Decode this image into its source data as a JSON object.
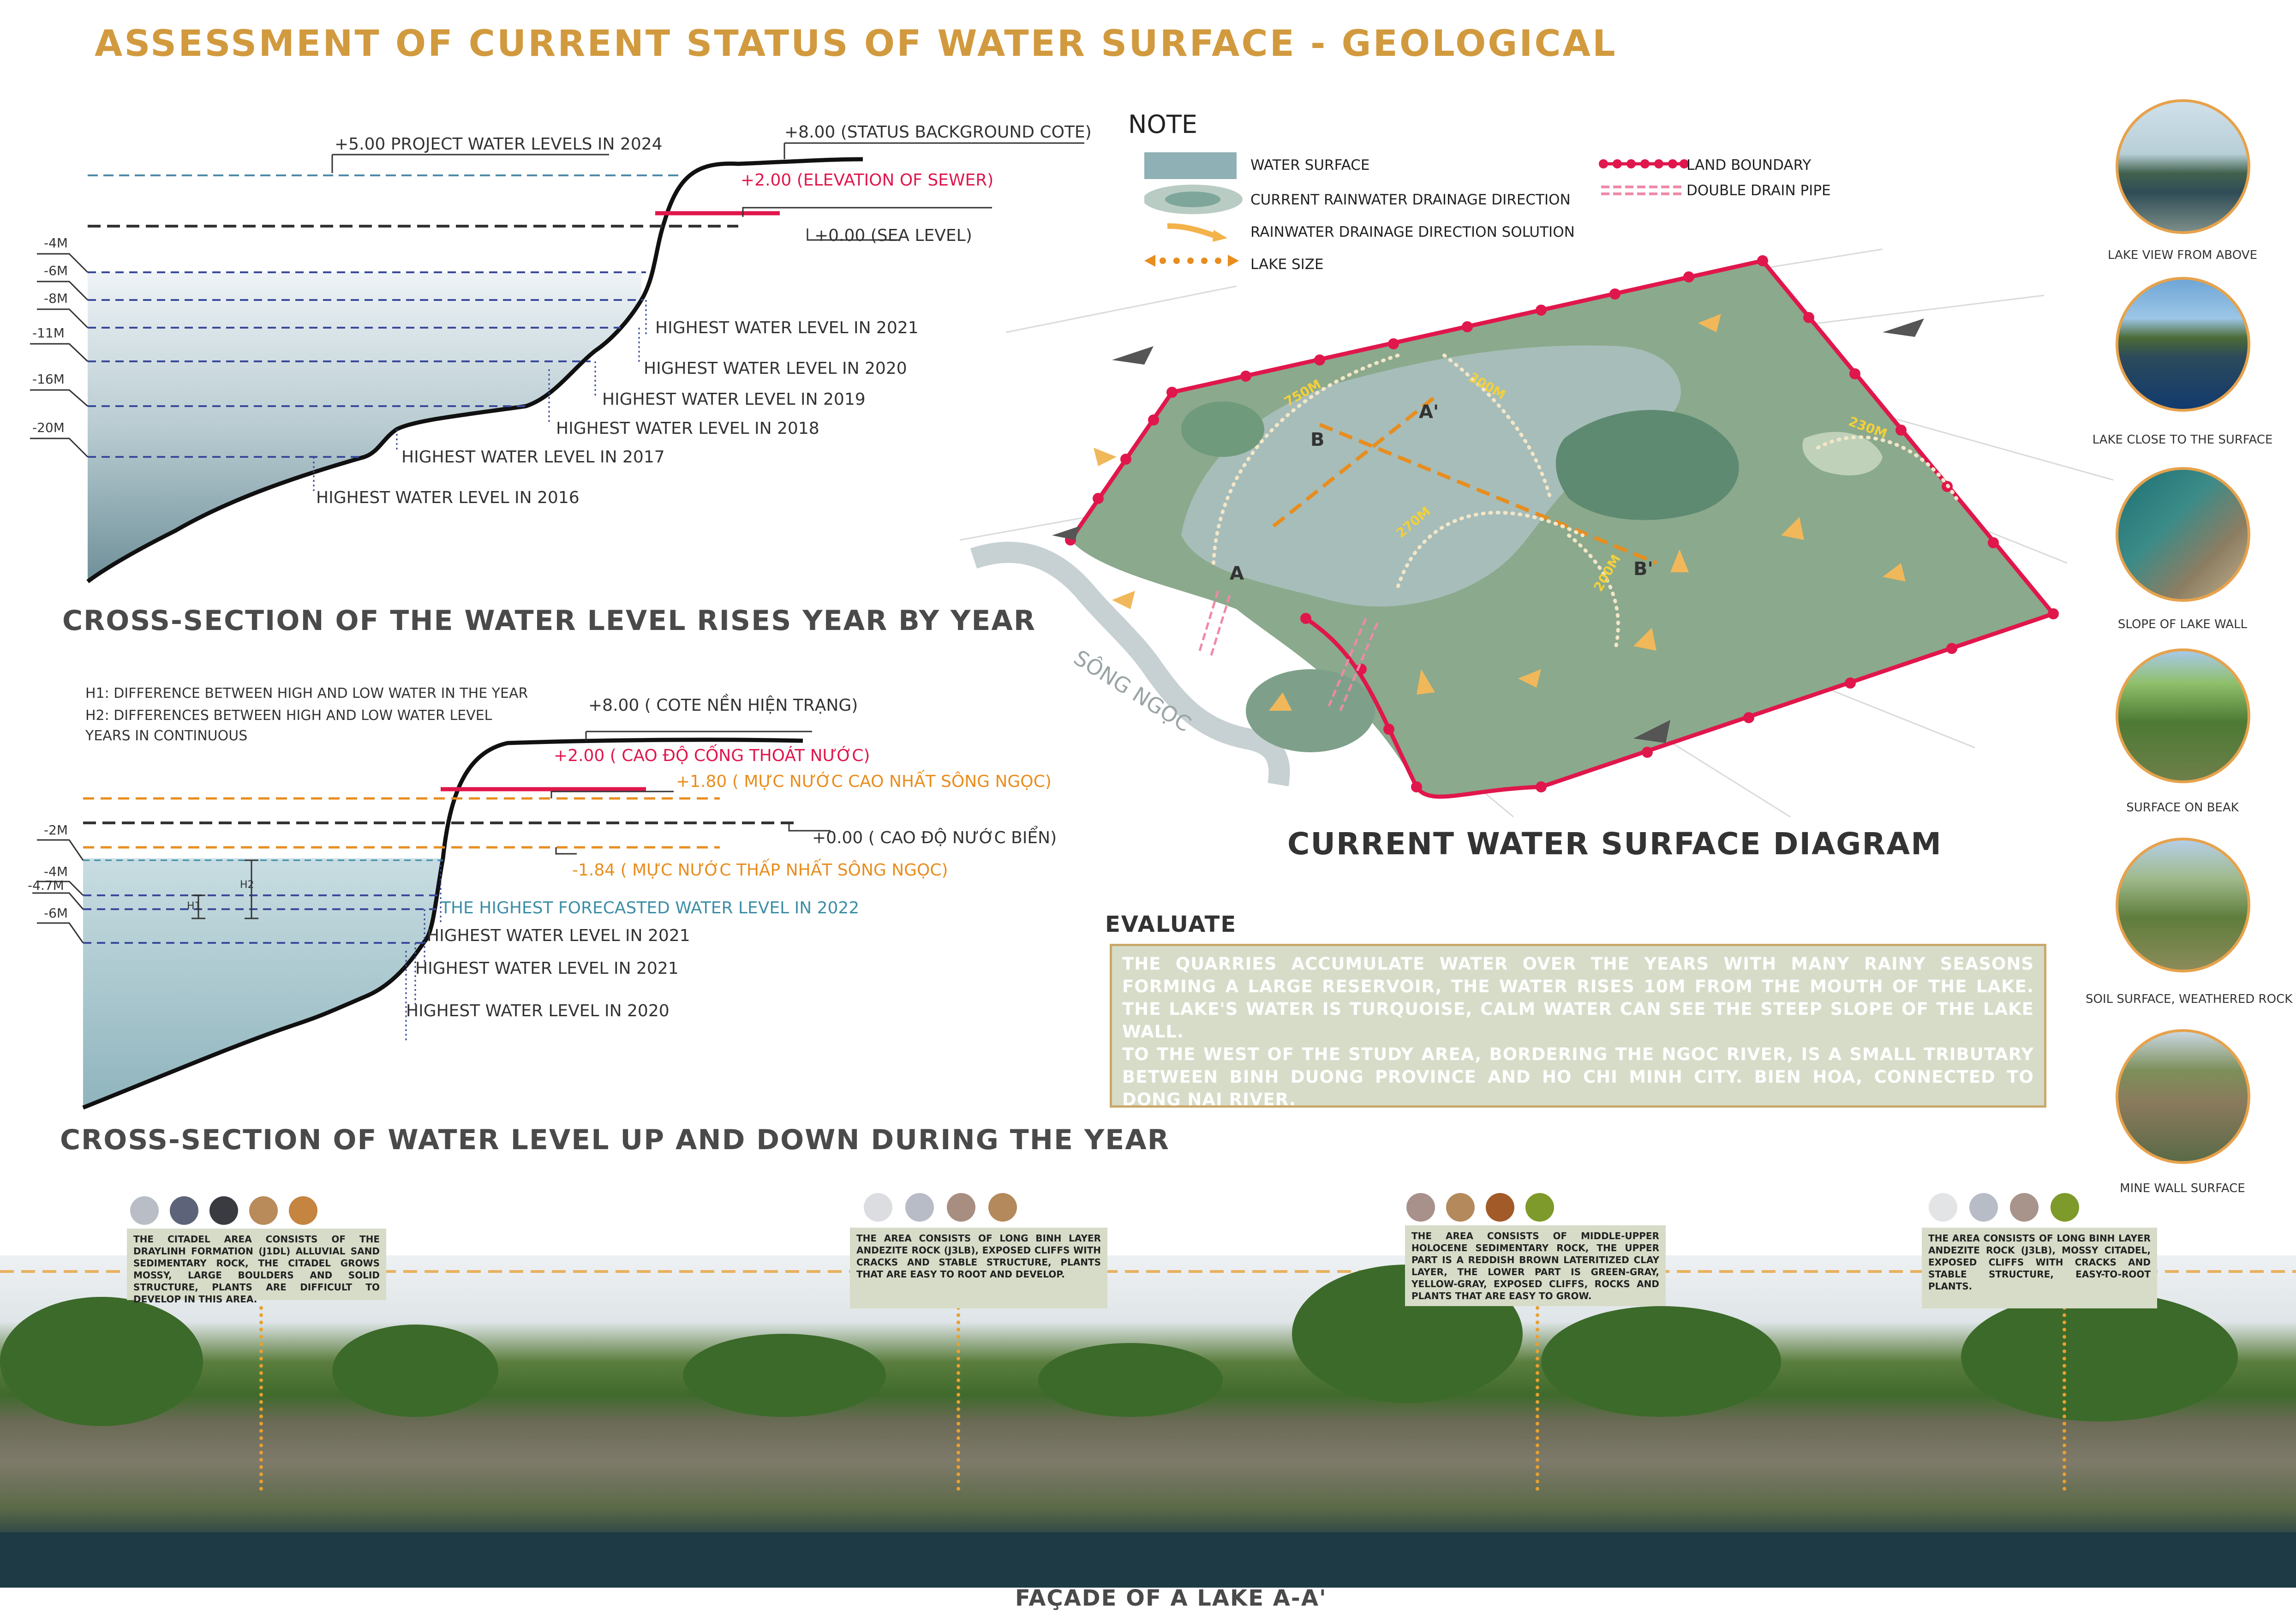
{
  "title": "ASSESSMENT OF CURRENT STATUS OF WATER SURFACE - GEOLOGICAL",
  "section1": {
    "heading": "CROSS-SECTION OF THE WATER LEVEL RISES YEAR BY YEAR",
    "labels": {
      "project_water": "+5.00 PROJECT WATER LEVELS IN 2024",
      "background": "+8.00 (STATUS BACKGROUND COTE)",
      "sewer": "+2.00 (ELEVATION OF SEWER)",
      "sea": "+0.00 (SEA LEVEL)",
      "y2021": "HIGHEST WATER LEVEL IN 2021",
      "y2020": "HIGHEST WATER LEVEL IN 2020",
      "y2019": "HIGHEST WATER LEVEL IN 2019",
      "y2018": "HIGHEST WATER LEVEL IN 2018",
      "y2017": "HIGHEST WATER LEVEL IN 2017",
      "y2016": "HIGHEST WATER LEVEL IN 2016"
    },
    "depths": [
      "-4M",
      "-6M",
      "-8M",
      "-11M",
      "-16M",
      "-20M"
    ]
  },
  "section2": {
    "heading": "CROSS-SECTION OF WATER LEVEL UP AND DOWN DURING THE YEAR",
    "h1": "H1:  DIFFERENCE BETWEEN HIGH AND LOW WATER IN THE YEAR",
    "h2a": "H2: DIFFERENCES BETWEEN HIGH AND LOW WATER LEVEL",
    "h2b": "YEARS IN CONTINUOUS",
    "labels": {
      "background": "+8.00 ( COTE NỀN HIỆN  TRẠNG)",
      "sewer": "+2.00 ( CAO ĐỘ CỐNG THOÁT NƯỚC)",
      "river_high": "+1.80 ( MỰC NƯỚC CAO NHẤT SÔNG NGỌC)",
      "sea": "+0.00 ( CAO ĐỘ NƯỚC BIỂN)",
      "river_low": "-1.84 ( MỰC NƯỚC THẤP NHẤT SÔNG NGỌC)",
      "forecast": "THE HIGHEST FORECASTED WATER LEVEL IN 2022",
      "y2021a": "HIGHEST WATER LEVEL IN 2021",
      "y2021b": "HIGHEST WATER LEVEL IN 2021",
      "y2020": "HIGHEST WATER LEVEL IN 2020",
      "h1_tag": "H1",
      "h2_tag": "H2"
    },
    "depths": [
      "-2M",
      "-4M",
      "-4.7M",
      "-6M"
    ]
  },
  "note": {
    "title": "NOTE",
    "items": [
      "WATER SURFACE",
      "CURRENT RAINWATER DRAINAGE DIRECTION",
      "RAINWATER DRAINAGE DIRECTION SOLUTION",
      "LAKE SIZE",
      "LAND BOUNDARY",
      "DOUBLE DRAIN PIPE"
    ]
  },
  "diagram": {
    "heading": "CURRENT WATER SURFACE DIAGRAM",
    "river": "SÔNG NGỌC",
    "points": [
      "A",
      "A'",
      "B",
      "B'"
    ],
    "sizes": [
      "750M",
      "300M",
      "230M",
      "270M",
      "200M"
    ]
  },
  "evaluate": {
    "title": "EVALUATE",
    "text1": "THE QUARRIES ACCUMULATE WATER OVER THE YEARS WITH MANY RAINY SEASONS FORMING A LARGE RESERVOIR, THE WATER RISES 10M FROM THE MOUTH OF THE LAKE. THE LAKE'S WATER IS TURQUOISE, CALM WATER CAN SEE THE STEEP SLOPE OF THE LAKE WALL.",
    "text2": "TO THE WEST OF THE STUDY AREA, BORDERING THE NGOC RIVER, IS A SMALL TRIBUTARY BETWEEN BINH DUONG PROVINCE AND HO CHI MINH CITY. BIEN HOA, CONNECTED TO DONG NAI RIVER."
  },
  "photos": [
    "LAKE VIEW FROM ABOVE",
    "LAKE CLOSE TO THE SURFACE",
    "SLOPE OF LAKE WALL",
    "SURFACE ON BEAK",
    "SOIL SURFACE, WEATHERED ROCK",
    "MINE WALL SURFACE"
  ],
  "facade": {
    "heading": "FAÇADE OF A LAKE A-A'",
    "annotations": [
      "THE CITADEL AREA CONSISTS OF THE DRAYLINH FORMATION (J1DL) ALLUVIAL SAND SEDIMENTARY ROCK, THE CITADEL GROWS MOSSY, LARGE BOULDERS AND SOLID STRUCTURE, PLANTS ARE DIFFICULT TO DEVELOP IN THIS AREA.",
      "THE AREA CONSISTS OF LONG BINH LAYER ANDEZITE ROCK (J3LB), EXPOSED CLIFFS WITH CRACKS AND STABLE STRUCTURE, PLANTS THAT ARE EASY TO ROOT AND DEVELOP.",
      "THE AREA CONSISTS OF MIDDLE-UPPER HOLOCENE SEDIMENTARY ROCK, THE UPPER PART IS A REDDISH BROWN LATERITIZED CLAY LAYER, THE LOWER PART IS GREEN-GRAY, YELLOW-GRAY, EXPOSED CLIFFS, ROCKS AND PLANTS THAT ARE EASY TO GROW.",
      "THE AREA CONSISTS OF LONG BINH LAYER ANDEZITE ROCK (J3LB), MOSSY CITADEL, EXPOSED CLIFFS WITH CRACKS AND STABLE STRUCTURE, EASY-TO-ROOT PLANTS."
    ]
  },
  "colors": {
    "title": "#d29a3e",
    "accent_red": "#e0174c",
    "accent_orange": "#e88d1e",
    "water": "#8fb0b4",
    "panel": "#d6dcc8",
    "swatches1": [
      "#b9bec6",
      "#5d6378",
      "#3a3b40",
      "#b98a5a",
      "#c58440"
    ],
    "swatches2": [
      "#dcdde0",
      "#b7bcc6",
      "#a88e80",
      "#b48a5c"
    ],
    "swatches3": [
      "#a8918a",
      "#b48a5c",
      "#a15a28",
      "#7e9a2a"
    ],
    "swatches4": [
      "#e3e4e6",
      "#b7bcc6",
      "#a8948a",
      "#7e9a2a"
    ]
  }
}
